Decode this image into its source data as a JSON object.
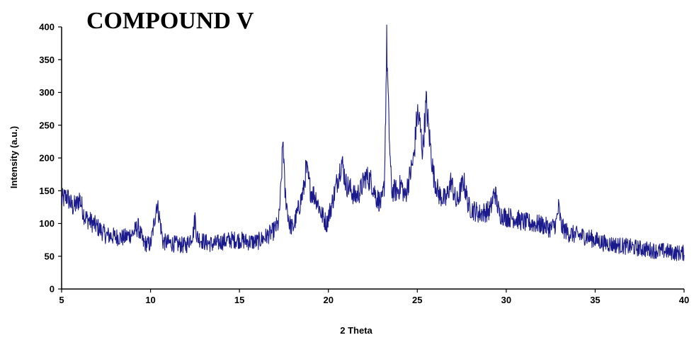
{
  "chart_data": {
    "type": "line",
    "title": "COMPOUND V",
    "xlabel": "2 Theta",
    "ylabel": "Intensity (a.u.)",
    "xlim": [
      5,
      40
    ],
    "ylim": [
      0,
      400
    ],
    "xticks": [
      5,
      10,
      15,
      20,
      25,
      30,
      35,
      40
    ],
    "yticks": [
      0,
      50,
      100,
      150,
      200,
      250,
      300,
      350,
      400
    ],
    "grid": false,
    "legend": "none",
    "series_color": "#1a1a8c",
    "anchors": [
      [
        5.0,
        135
      ],
      [
        5.3,
        142
      ],
      [
        5.6,
        125
      ],
      [
        5.9,
        130
      ],
      [
        6.0,
        140
      ],
      [
        6.3,
        110
      ],
      [
        7.0,
        95
      ],
      [
        7.5,
        82
      ],
      [
        8.0,
        80
      ],
      [
        8.5,
        78
      ],
      [
        9.0,
        85
      ],
      [
        9.3,
        95
      ],
      [
        9.6,
        70
      ],
      [
        10.0,
        68
      ],
      [
        10.2,
        100
      ],
      [
        10.35,
        132
      ],
      [
        10.5,
        110
      ],
      [
        10.7,
        72
      ],
      [
        11.5,
        68
      ],
      [
        12.0,
        66
      ],
      [
        12.4,
        85
      ],
      [
        12.5,
        110
      ],
      [
        12.6,
        80
      ],
      [
        13.0,
        72
      ],
      [
        13.5,
        68
      ],
      [
        14.0,
        72
      ],
      [
        14.5,
        75
      ],
      [
        15.0,
        75
      ],
      [
        15.5,
        72
      ],
      [
        16.0,
        72
      ],
      [
        16.5,
        80
      ],
      [
        16.9,
        88
      ],
      [
        17.2,
        100
      ],
      [
        17.35,
        160
      ],
      [
        17.45,
        233
      ],
      [
        17.55,
        150
      ],
      [
        17.8,
        100
      ],
      [
        18.0,
        92
      ],
      [
        18.3,
        120
      ],
      [
        18.6,
        150
      ],
      [
        18.75,
        185
      ],
      [
        19.0,
        150
      ],
      [
        19.3,
        140
      ],
      [
        19.6,
        115
      ],
      [
        19.9,
        100
      ],
      [
        20.2,
        130
      ],
      [
        20.5,
        165
      ],
      [
        20.75,
        195
      ],
      [
        21.0,
        160
      ],
      [
        21.3,
        150
      ],
      [
        21.5,
        140
      ],
      [
        21.8,
        150
      ],
      [
        22.1,
        172
      ],
      [
        22.4,
        165
      ],
      [
        22.7,
        140
      ],
      [
        23.0,
        130
      ],
      [
        23.15,
        160
      ],
      [
        23.28,
        375
      ],
      [
        23.4,
        250
      ],
      [
        23.55,
        150
      ],
      [
        23.9,
        150
      ],
      [
        24.1,
        160
      ],
      [
        24.3,
        140
      ],
      [
        24.6,
        175
      ],
      [
        24.8,
        200
      ],
      [
        25.0,
        270
      ],
      [
        25.15,
        250
      ],
      [
        25.3,
        210
      ],
      [
        25.5,
        285
      ],
      [
        25.65,
        240
      ],
      [
        25.9,
        175
      ],
      [
        26.2,
        145
      ],
      [
        26.6,
        135
      ],
      [
        26.9,
        165
      ],
      [
        27.2,
        130
      ],
      [
        27.6,
        165
      ],
      [
        27.9,
        125
      ],
      [
        28.5,
        115
      ],
      [
        29.1,
        120
      ],
      [
        29.35,
        150
      ],
      [
        29.6,
        115
      ],
      [
        30.0,
        110
      ],
      [
        30.5,
        108
      ],
      [
        31.0,
        102
      ],
      [
        31.5,
        100
      ],
      [
        32.0,
        98
      ],
      [
        32.5,
        92
      ],
      [
        32.8,
        100
      ],
      [
        32.95,
        125
      ],
      [
        33.1,
        95
      ],
      [
        33.5,
        85
      ],
      [
        34.0,
        82
      ],
      [
        34.5,
        80
      ],
      [
        35.0,
        75
      ],
      [
        35.5,
        70
      ],
      [
        36.0,
        68
      ],
      [
        36.5,
        66
      ],
      [
        37.0,
        64
      ],
      [
        37.5,
        62
      ],
      [
        38.0,
        60
      ],
      [
        38.5,
        58
      ],
      [
        39.0,
        58
      ],
      [
        39.5,
        55
      ],
      [
        40.0,
        55
      ]
    ]
  }
}
